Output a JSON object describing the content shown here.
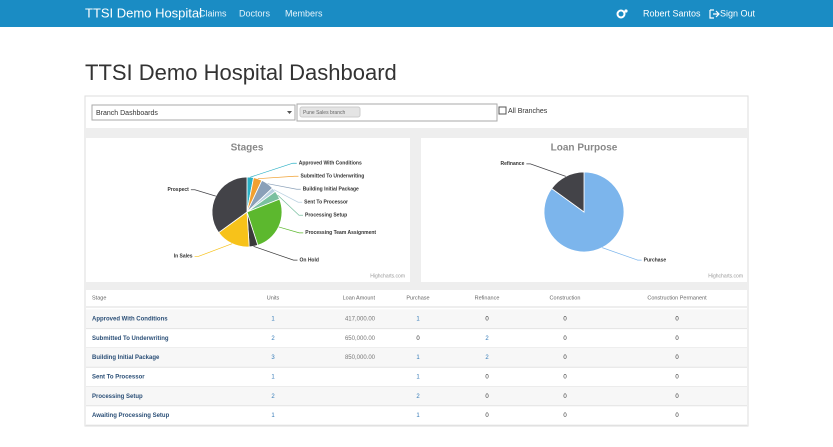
{
  "navbar": {
    "brand": "TTSI Demo Hospital",
    "links": [
      "Claims",
      "Doctors",
      "Members"
    ],
    "user": "Robert Santos",
    "sign_out": "Sign Out"
  },
  "header": {
    "title": "TTSI Demo Hospital Dashboard"
  },
  "filters": {
    "select": "Branch Dashboards",
    "tag": "Pune Sales branch",
    "checkbox": "All Branches"
  },
  "chart_data": [
    {
      "type": "pie",
      "title": "Stages",
      "credits": "Highcharts.com",
      "categories": [
        "Approved With Conditions",
        "Submitted To Underwriting",
        "Building Initial Package",
        "Sent To Processor",
        "Processing Setup",
        "Processing Team Assignment",
        "On Hold",
        "In Sales",
        "Prospect"
      ],
      "values": [
        3,
        4,
        6,
        2,
        4,
        26,
        4,
        16,
        35
      ],
      "colors": [
        "#2ab0c5",
        "#f0a030",
        "#8aa0b8",
        "#b8d0e0",
        "#7ac0a0",
        "#5cb82e",
        "#3a3a3a",
        "#f7c21a",
        "#434348"
      ]
    },
    {
      "type": "pie",
      "title": "Loan Purpose",
      "credits": "Highcharts.com",
      "categories": [
        "Purchase",
        "Refinance"
      ],
      "values": [
        85,
        15
      ],
      "colors": [
        "#7cb5ec",
        "#434348"
      ]
    }
  ],
  "table": {
    "columns": [
      "Stage",
      "Units",
      "Loan Amount",
      "Purchase",
      "Refinance",
      "Construction",
      "Construction Permanent"
    ],
    "rows": [
      [
        "Approved With Conditions",
        1,
        "417,000.00",
        1,
        0,
        0,
        0
      ],
      [
        "Submitted To Underwriting",
        2,
        "650,000.00",
        0,
        2,
        0,
        0
      ],
      [
        "Building Initial Package",
        3,
        "850,000.00",
        1,
        2,
        0,
        0
      ],
      [
        "Sent To Processor",
        1,
        null,
        1,
        0,
        0,
        0
      ],
      [
        "Processing Setup",
        2,
        null,
        2,
        0,
        0,
        0
      ],
      [
        "Awaiting Processing Setup",
        1,
        null,
        1,
        0,
        0,
        0
      ]
    ]
  }
}
